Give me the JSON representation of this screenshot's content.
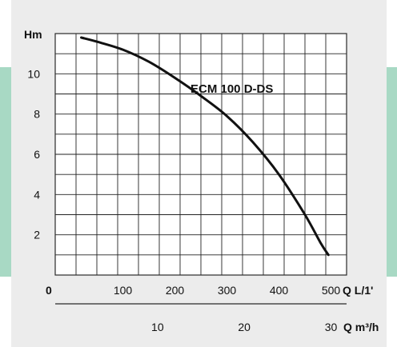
{
  "colors": {
    "panel_bg": "#ececec",
    "side_accent": "#a8d9c4",
    "frame": "#2a2a2a",
    "grid": "#222222",
    "curve": "#111111",
    "text": "#111111"
  },
  "chart_data": {
    "type": "line",
    "ylabel": "Hm",
    "ylim": [
      0,
      12
    ],
    "y_ticks": [
      2,
      4,
      6,
      8,
      10
    ],
    "y_tick_labels": [
      "2",
      "4",
      "6",
      "8",
      "10"
    ],
    "x_primary": {
      "unit_label": "Q  L/1'",
      "range": [
        -30,
        530
      ],
      "ticks": [
        100,
        200,
        300,
        400,
        500
      ],
      "tick_labels": [
        "100",
        "200",
        "300",
        "400",
        "500"
      ],
      "origin_label": "0"
    },
    "x_secondary": {
      "unit_label": "Q  m³/h",
      "ticks": [
        10,
        20,
        30
      ],
      "tick_labels": [
        "10",
        "20",
        "30"
      ]
    },
    "grid": true,
    "series": [
      {
        "name": "ECM 100 D-DS",
        "x": [
          20,
          50,
          100,
          150,
          200,
          250,
          300,
          350,
          400,
          450,
          480,
          495
        ],
        "y": [
          11.8,
          11.6,
          11.2,
          10.6,
          9.8,
          8.9,
          7.9,
          6.6,
          5.0,
          3.0,
          1.6,
          1.0
        ]
      }
    ]
  }
}
